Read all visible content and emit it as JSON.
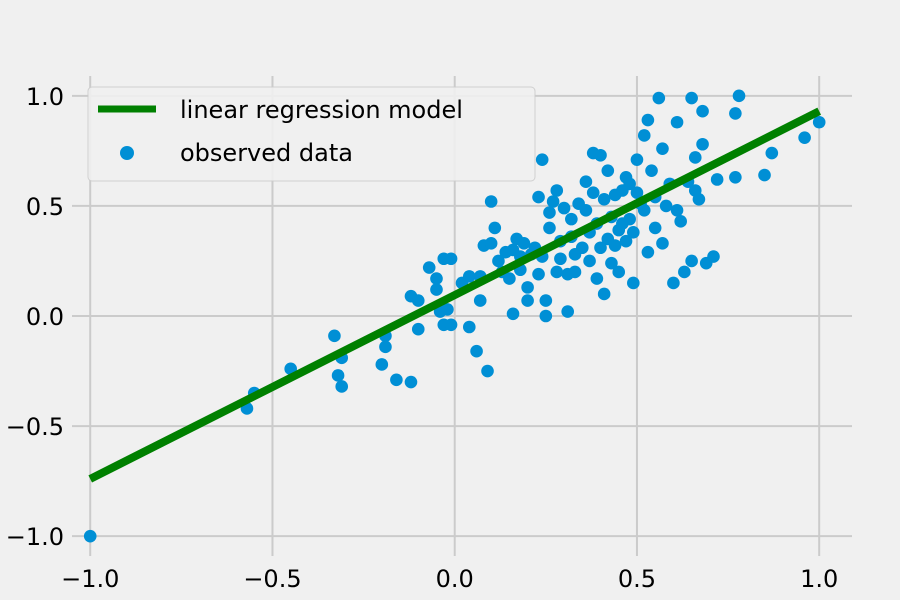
{
  "chart_data": {
    "type": "scatter",
    "title": "",
    "xlabel": "",
    "ylabel": "",
    "xlim": [
      -1.05,
      1.09
    ],
    "ylim": [
      -1.09,
      1.09
    ],
    "xticks": [
      -1.0,
      -0.5,
      0.0,
      0.5,
      1.0
    ],
    "yticks": [
      -1.0,
      -0.5,
      0.0,
      0.5,
      1.0
    ],
    "xtick_labels": [
      "−1.0",
      "−0.5",
      "0.0",
      "0.5",
      "1.0"
    ],
    "ytick_labels": [
      "−1.0",
      "−0.5",
      "0.0",
      "0.5",
      "1.0"
    ],
    "grid": true,
    "legend_position": "top-left",
    "line_series": {
      "name": "linear regression model",
      "color": "#008000",
      "x": [
        -1.0,
        1.0
      ],
      "y": [
        -0.74,
        0.93
      ]
    },
    "scatter_series": {
      "name": "observed data",
      "color": "#008fd5",
      "points": [
        [
          -1.0,
          -1.0
        ],
        [
          -0.57,
          -0.42
        ],
        [
          -0.55,
          -0.35
        ],
        [
          -0.45,
          -0.24
        ],
        [
          -0.33,
          -0.09
        ],
        [
          -0.32,
          -0.27
        ],
        [
          -0.31,
          -0.32
        ],
        [
          -0.31,
          -0.19
        ],
        [
          -0.2,
          -0.22
        ],
        [
          -0.19,
          -0.09
        ],
        [
          -0.19,
          -0.14
        ],
        [
          -0.16,
          -0.29
        ],
        [
          -0.12,
          -0.3
        ],
        [
          -0.12,
          0.09
        ],
        [
          -0.1,
          -0.06
        ],
        [
          -0.1,
          0.07
        ],
        [
          -0.07,
          0.22
        ],
        [
          -0.05,
          0.17
        ],
        [
          -0.05,
          0.12
        ],
        [
          -0.04,
          0.02
        ],
        [
          -0.03,
          -0.04
        ],
        [
          -0.03,
          0.26
        ],
        [
          -0.02,
          0.03
        ],
        [
          -0.01,
          -0.04
        ],
        [
          -0.01,
          0.26
        ],
        [
          0.02,
          0.15
        ],
        [
          0.04,
          0.18
        ],
        [
          0.04,
          -0.05
        ],
        [
          0.06,
          -0.16
        ],
        [
          0.07,
          0.07
        ],
        [
          0.07,
          0.18
        ],
        [
          0.08,
          0.32
        ],
        [
          0.09,
          -0.25
        ],
        [
          0.1,
          0.52
        ],
        [
          0.1,
          0.33
        ],
        [
          0.11,
          0.4
        ],
        [
          0.12,
          0.25
        ],
        [
          0.13,
          0.2
        ],
        [
          0.14,
          0.29
        ],
        [
          0.15,
          0.17
        ],
        [
          0.16,
          0.3
        ],
        [
          0.16,
          0.01
        ],
        [
          0.17,
          0.35
        ],
        [
          0.18,
          0.21
        ],
        [
          0.18,
          0.27
        ],
        [
          0.19,
          0.33
        ],
        [
          0.2,
          0.13
        ],
        [
          0.2,
          0.07
        ],
        [
          0.21,
          0.28
        ],
        [
          0.22,
          0.31
        ],
        [
          0.23,
          0.19
        ],
        [
          0.23,
          0.54
        ],
        [
          0.24,
          0.71
        ],
        [
          0.24,
          0.27
        ],
        [
          0.25,
          0.0
        ],
        [
          0.25,
          0.07
        ],
        [
          0.26,
          0.47
        ],
        [
          0.26,
          0.4
        ],
        [
          0.27,
          0.52
        ],
        [
          0.28,
          0.2
        ],
        [
          0.28,
          0.57
        ],
        [
          0.29,
          0.34
        ],
        [
          0.29,
          0.26
        ],
        [
          0.3,
          0.49
        ],
        [
          0.31,
          0.19
        ],
        [
          0.31,
          0.02
        ],
        [
          0.32,
          0.36
        ],
        [
          0.32,
          0.44
        ],
        [
          0.33,
          0.28
        ],
        [
          0.33,
          0.2
        ],
        [
          0.34,
          0.51
        ],
        [
          0.35,
          0.31
        ],
        [
          0.36,
          0.61
        ],
        [
          0.36,
          0.48
        ],
        [
          0.37,
          0.25
        ],
        [
          0.37,
          0.38
        ],
        [
          0.38,
          0.74
        ],
        [
          0.38,
          0.56
        ],
        [
          0.39,
          0.42
        ],
        [
          0.39,
          0.17
        ],
        [
          0.4,
          0.73
        ],
        [
          0.4,
          0.31
        ],
        [
          0.41,
          0.53
        ],
        [
          0.41,
          0.1
        ],
        [
          0.42,
          0.66
        ],
        [
          0.42,
          0.35
        ],
        [
          0.43,
          0.45
        ],
        [
          0.43,
          0.24
        ],
        [
          0.44,
          0.55
        ],
        [
          0.44,
          0.32
        ],
        [
          0.45,
          0.39
        ],
        [
          0.45,
          0.2
        ],
        [
          0.46,
          0.57
        ],
        [
          0.46,
          0.42
        ],
        [
          0.47,
          0.34
        ],
        [
          0.47,
          0.63
        ],
        [
          0.48,
          0.44
        ],
        [
          0.48,
          0.6
        ],
        [
          0.49,
          0.15
        ],
        [
          0.49,
          0.38
        ],
        [
          0.5,
          0.56
        ],
        [
          0.5,
          0.71
        ],
        [
          0.51,
          0.51
        ],
        [
          0.52,
          0.48
        ],
        [
          0.52,
          0.82
        ],
        [
          0.53,
          0.89
        ],
        [
          0.53,
          0.29
        ],
        [
          0.54,
          0.66
        ],
        [
          0.55,
          0.4
        ],
        [
          0.55,
          0.54
        ],
        [
          0.56,
          0.99
        ],
        [
          0.57,
          0.76
        ],
        [
          0.57,
          0.33
        ],
        [
          0.58,
          0.5
        ],
        [
          0.59,
          0.6
        ],
        [
          0.6,
          0.15
        ],
        [
          0.61,
          0.88
        ],
        [
          0.61,
          0.48
        ],
        [
          0.62,
          0.43
        ],
        [
          0.63,
          0.2
        ],
        [
          0.64,
          0.61
        ],
        [
          0.65,
          0.99
        ],
        [
          0.65,
          0.25
        ],
        [
          0.66,
          0.57
        ],
        [
          0.66,
          0.72
        ],
        [
          0.67,
          0.53
        ],
        [
          0.68,
          0.78
        ],
        [
          0.68,
          0.93
        ],
        [
          0.69,
          0.24
        ],
        [
          0.71,
          0.27
        ],
        [
          0.72,
          0.62
        ],
        [
          0.77,
          0.63
        ],
        [
          0.77,
          0.92
        ],
        [
          0.78,
          1.0
        ],
        [
          0.85,
          0.64
        ],
        [
          0.87,
          0.74
        ],
        [
          0.96,
          0.81
        ],
        [
          1.0,
          0.88
        ]
      ]
    }
  }
}
